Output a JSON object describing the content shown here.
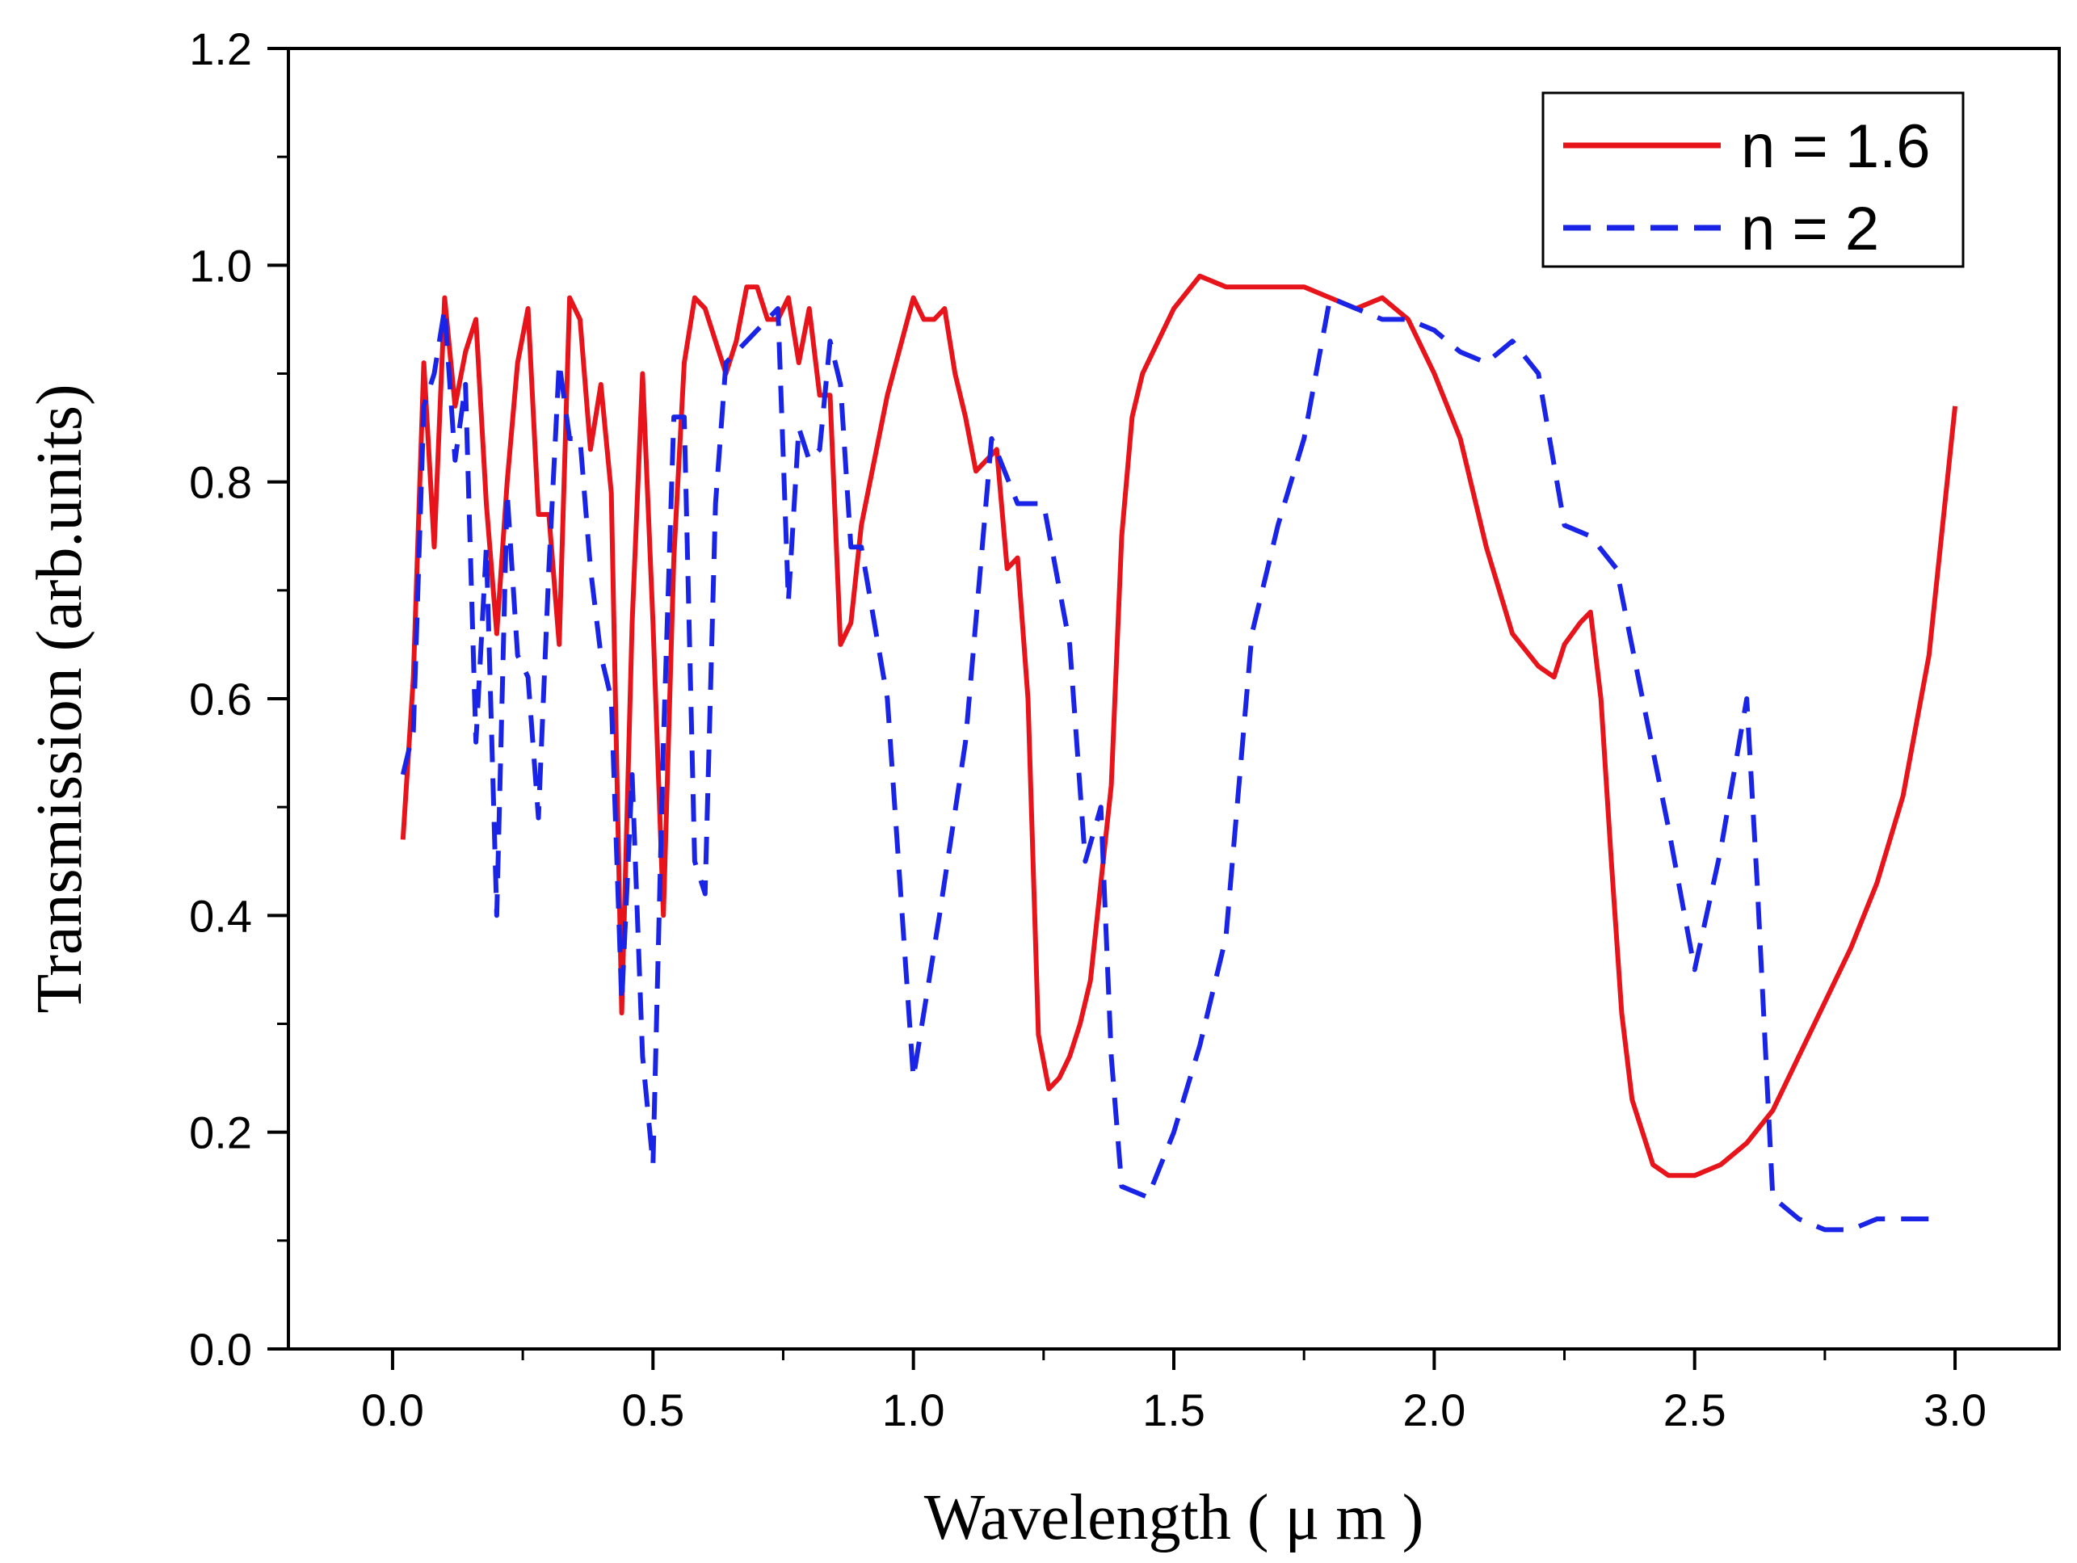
{
  "chart_data": {
    "type": "line",
    "title": "",
    "xlabel": "Wavelength  ( μ m )",
    "ylabel": "Transmission  (arb.units)",
    "xlim": [
      -0.2,
      3.2
    ],
    "ylim": [
      0.0,
      1.2
    ],
    "x_ticks": [
      0.0,
      0.5,
      1.0,
      1.5,
      2.0,
      2.5,
      3.0
    ],
    "x_tick_labels": [
      "0.0",
      "0.5",
      "1.0",
      "1.5",
      "2.0",
      "2.5",
      "3.0"
    ],
    "y_ticks": [
      0.0,
      0.2,
      0.4,
      0.6,
      0.8,
      1.0,
      1.2
    ],
    "y_tick_labels": [
      "0.0",
      "0.2",
      "0.4",
      "0.6",
      "0.8",
      "1.0",
      "1.2"
    ],
    "grid": false,
    "legend_position": "top-right",
    "series": [
      {
        "name": "n = 1.6",
        "color": "#e8141b",
        "style": "solid",
        "x": [
          0.02,
          0.04,
          0.06,
          0.08,
          0.1,
          0.12,
          0.14,
          0.16,
          0.18,
          0.2,
          0.22,
          0.24,
          0.26,
          0.28,
          0.3,
          0.32,
          0.34,
          0.36,
          0.38,
          0.4,
          0.42,
          0.44,
          0.46,
          0.48,
          0.5,
          0.52,
          0.54,
          0.56,
          0.58,
          0.6,
          0.62,
          0.64,
          0.66,
          0.68,
          0.7,
          0.72,
          0.74,
          0.76,
          0.78,
          0.8,
          0.82,
          0.84,
          0.86,
          0.88,
          0.9,
          0.95,
          1.0,
          1.02,
          1.04,
          1.06,
          1.08,
          1.1,
          1.12,
          1.14,
          1.16,
          1.18,
          1.2,
          1.22,
          1.24,
          1.26,
          1.28,
          1.3,
          1.32,
          1.34,
          1.36,
          1.38,
          1.4,
          1.42,
          1.44,
          1.46,
          1.5,
          1.55,
          1.6,
          1.65,
          1.7,
          1.75,
          1.8,
          1.85,
          1.9,
          1.95,
          2.0,
          2.05,
          2.1,
          2.15,
          2.2,
          2.23,
          2.25,
          2.28,
          2.3,
          2.32,
          2.34,
          2.36,
          2.38,
          2.4,
          2.42,
          2.45,
          2.5,
          2.55,
          2.6,
          2.65,
          2.7,
          2.75,
          2.8,
          2.85,
          2.9,
          2.95,
          3.0
        ],
        "values": [
          0.47,
          0.62,
          0.91,
          0.74,
          0.97,
          0.87,
          0.92,
          0.95,
          0.78,
          0.66,
          0.8,
          0.91,
          0.96,
          0.77,
          0.77,
          0.65,
          0.97,
          0.95,
          0.83,
          0.89,
          0.79,
          0.31,
          0.67,
          0.9,
          0.67,
          0.4,
          0.73,
          0.91,
          0.97,
          0.96,
          0.93,
          0.9,
          0.93,
          0.98,
          0.98,
          0.95,
          0.95,
          0.97,
          0.91,
          0.96,
          0.88,
          0.88,
          0.65,
          0.67,
          0.76,
          0.88,
          0.97,
          0.95,
          0.95,
          0.96,
          0.9,
          0.86,
          0.81,
          0.82,
          0.83,
          0.72,
          0.73,
          0.6,
          0.29,
          0.24,
          0.25,
          0.27,
          0.3,
          0.34,
          0.43,
          0.52,
          0.75,
          0.86,
          0.9,
          0.92,
          0.96,
          0.99,
          0.98,
          0.98,
          0.98,
          0.98,
          0.97,
          0.96,
          0.97,
          0.95,
          0.9,
          0.84,
          0.74,
          0.66,
          0.63,
          0.62,
          0.65,
          0.67,
          0.68,
          0.6,
          0.45,
          0.31,
          0.23,
          0.2,
          0.17,
          0.16,
          0.16,
          0.17,
          0.19,
          0.22,
          0.27,
          0.32,
          0.37,
          0.43,
          0.51,
          0.64,
          0.87
        ]
      },
      {
        "name": "n = 2",
        "color": "#1a24e6",
        "style": "dashed",
        "x": [
          0.02,
          0.04,
          0.06,
          0.08,
          0.1,
          0.12,
          0.14,
          0.16,
          0.18,
          0.2,
          0.22,
          0.24,
          0.26,
          0.28,
          0.3,
          0.32,
          0.34,
          0.36,
          0.38,
          0.4,
          0.42,
          0.44,
          0.46,
          0.48,
          0.5,
          0.52,
          0.54,
          0.56,
          0.58,
          0.6,
          0.62,
          0.64,
          0.66,
          0.68,
          0.7,
          0.72,
          0.74,
          0.76,
          0.78,
          0.8,
          0.82,
          0.84,
          0.86,
          0.88,
          0.9,
          0.95,
          1.0,
          1.05,
          1.1,
          1.15,
          1.2,
          1.25,
          1.3,
          1.33,
          1.36,
          1.38,
          1.4,
          1.45,
          1.5,
          1.55,
          1.6,
          1.65,
          1.7,
          1.75,
          1.8,
          1.85,
          1.9,
          1.95,
          2.0,
          2.05,
          2.1,
          2.15,
          2.2,
          2.25,
          2.3,
          2.35,
          2.4,
          2.45,
          2.5,
          2.55,
          2.6,
          2.62,
          2.65,
          2.7,
          2.75,
          2.8,
          2.85,
          2.9,
          2.95
        ],
        "values": [
          0.53,
          0.57,
          0.87,
          0.9,
          0.96,
          0.82,
          0.89,
          0.56,
          0.74,
          0.4,
          0.79,
          0.64,
          0.62,
          0.49,
          0.72,
          0.91,
          0.84,
          0.84,
          0.72,
          0.64,
          0.6,
          0.32,
          0.53,
          0.27,
          0.17,
          0.56,
          0.86,
          0.86,
          0.45,
          0.42,
          0.78,
          0.91,
          0.92,
          0.93,
          0.94,
          0.95,
          0.96,
          0.69,
          0.85,
          0.82,
          0.83,
          0.93,
          0.89,
          0.74,
          0.74,
          0.6,
          0.25,
          0.4,
          0.56,
          0.84,
          0.78,
          0.78,
          0.65,
          0.45,
          0.5,
          0.27,
          0.15,
          0.14,
          0.2,
          0.28,
          0.38,
          0.66,
          0.76,
          0.84,
          0.97,
          0.96,
          0.95,
          0.95,
          0.94,
          0.92,
          0.91,
          0.93,
          0.9,
          0.76,
          0.75,
          0.72,
          0.6,
          0.48,
          0.35,
          0.46,
          0.6,
          0.43,
          0.14,
          0.12,
          0.11,
          0.11,
          0.12,
          0.12,
          0.12
        ]
      }
    ]
  }
}
